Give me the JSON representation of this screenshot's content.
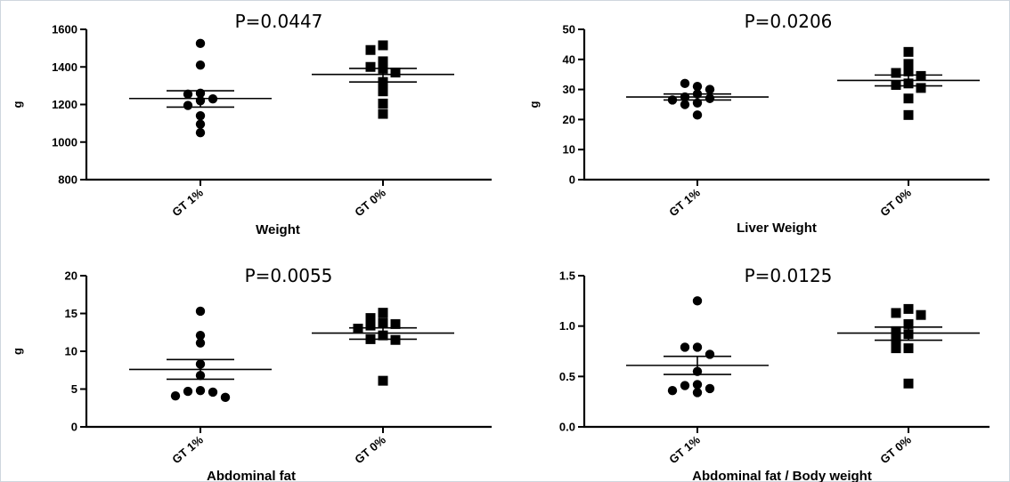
{
  "chart_data": [
    {
      "type": "scatter",
      "title": "P=0.0447",
      "xlabel": "Weight",
      "ylabel": "g",
      "ylim": [
        800,
        1600
      ],
      "yticks": [
        "800",
        "1000",
        "1200",
        "1400",
        "1600"
      ],
      "categories": [
        "GT 1%",
        "GT 0%"
      ],
      "series": [
        {
          "values": [
            1525,
            1410,
            1260,
            1255,
            1230,
            1220,
            1195,
            1140,
            1095,
            1050
          ],
          "mean": 1232,
          "sem_low": 1186,
          "sem_high": 1273,
          "marker": "circle"
        },
        {
          "values": [
            1515,
            1490,
            1430,
            1400,
            1390,
            1370,
            1320,
            1270,
            1205,
            1150
          ],
          "mean": 1360,
          "sem_low": 1320,
          "sem_high": 1392,
          "marker": "square"
        }
      ]
    },
    {
      "type": "scatter",
      "title": "P=0.0206",
      "xlabel": "Liver Weight",
      "ylabel": "g",
      "ylim": [
        0,
        50
      ],
      "yticks": [
        "0",
        "10",
        "20",
        "30",
        "40",
        "50"
      ],
      "categories": [
        "GT 1%",
        "GT 0%"
      ],
      "series": [
        {
          "values": [
            31,
            32,
            30,
            28.5,
            27.5,
            27,
            26.5,
            25.5,
            25,
            21.5
          ],
          "mean": 27.5,
          "sem_low": 26.5,
          "sem_high": 28.5,
          "marker": "circle"
        },
        {
          "values": [
            42.5,
            38.5,
            36,
            35.5,
            34.5,
            32,
            31.5,
            30.5,
            27,
            21.5
          ],
          "mean": 33,
          "sem_low": 31.2,
          "sem_high": 34.8,
          "marker": "square"
        }
      ]
    },
    {
      "type": "scatter",
      "title": "P=0.0055",
      "xlabel": "Abdominal fat",
      "ylabel": "g",
      "ylim": [
        0,
        20
      ],
      "yticks": [
        "0",
        "5",
        "10",
        "15",
        "20"
      ],
      "categories": [
        "GT 1%",
        "GT 0%"
      ],
      "series": [
        {
          "values": [
            15.3,
            12.1,
            11.1,
            8.3,
            6.8,
            4.8,
            4.7,
            4.6,
            4.1,
            3.9
          ],
          "mean": 7.6,
          "sem_low": 6.3,
          "sem_high": 8.9,
          "marker": "circle"
        },
        {
          "values": [
            15.1,
            14.4,
            13.8,
            13.6,
            13.4,
            13,
            12.1,
            11.6,
            11.5,
            6.1
          ],
          "mean": 12.4,
          "sem_low": 11.6,
          "sem_high": 13.1,
          "marker": "square"
        }
      ]
    },
    {
      "type": "scatter",
      "title": "P=0.0125",
      "xlabel": "Abdominal fat / Body weight",
      "ylabel": "",
      "ylim": [
        0,
        1.5
      ],
      "yticks": [
        "0.0",
        "0.5",
        "1.0",
        "1.5"
      ],
      "categories": [
        "GT 1%",
        "GT 0%"
      ],
      "series": [
        {
          "values": [
            1.25,
            0.79,
            0.79,
            0.72,
            0.55,
            0.42,
            0.41,
            0.38,
            0.36,
            0.34
          ],
          "mean": 0.61,
          "sem_low": 0.52,
          "sem_high": 0.7,
          "marker": "circle"
        },
        {
          "values": [
            1.17,
            1.13,
            1.11,
            1.02,
            0.95,
            0.92,
            0.86,
            0.78,
            0.78,
            0.43
          ],
          "mean": 0.93,
          "sem_low": 0.86,
          "sem_high": 0.99,
          "marker": "square"
        }
      ]
    }
  ]
}
